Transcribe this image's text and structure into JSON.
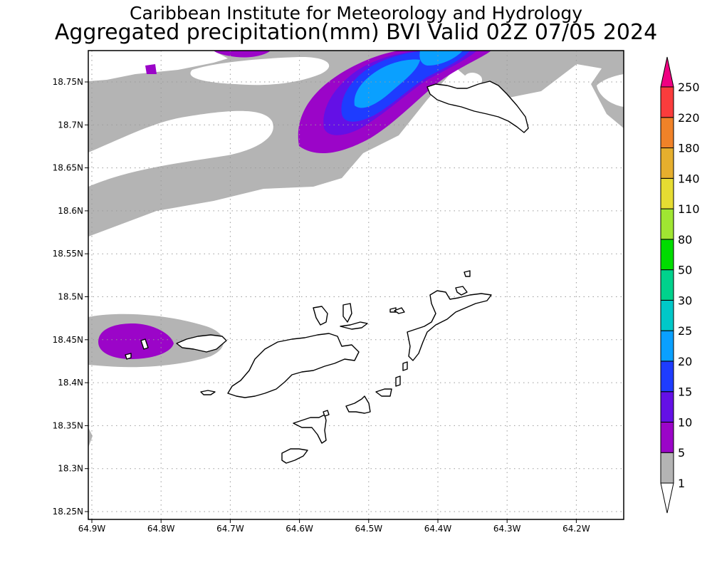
{
  "title": {
    "line1": "Caribbean Institute for Meteorology and Hydrology",
    "line2": "Aggregated precipitation(mm) BVI Valid 02Z 07/05 2024"
  },
  "axes": {
    "lat_labels": [
      "18.75N",
      "18.7N",
      "18.65N",
      "18.6N",
      "18.55N",
      "18.5N",
      "18.45N",
      "18.4N",
      "18.35N",
      "18.3N",
      "18.25N"
    ],
    "lat_values": [
      18.75,
      18.7,
      18.65,
      18.6,
      18.55,
      18.5,
      18.45,
      18.4,
      18.35,
      18.3,
      18.25
    ],
    "lon_labels": [
      "64.9W",
      "64.8W",
      "64.7W",
      "64.6W",
      "64.5W",
      "64.4W",
      "64.3W",
      "64.2W"
    ],
    "lon_values": [
      -64.9,
      -64.8,
      -64.7,
      -64.6,
      -64.5,
      -64.4,
      -64.3,
      -64.2
    ]
  },
  "legend": {
    "levels": [
      "1",
      "5",
      "10",
      "15",
      "20",
      "25",
      "30",
      "50",
      "80",
      "110",
      "140",
      "180",
      "220",
      "250"
    ],
    "colors": [
      "#ffffff",
      "#b4b4b4",
      "#9b05c8",
      "#6410e6",
      "#1e3cff",
      "#0aa0ff",
      "#00c8c8",
      "#00d28c",
      "#00dc00",
      "#a0e632",
      "#e6dc32",
      "#e6af2d",
      "#f08228",
      "#fa3c3c",
      "#f00082"
    ]
  },
  "colors": {
    "gray": "#b4b4b4",
    "purple": "#9b05c8",
    "violet": "#6410e6",
    "blue": "#1e3cff",
    "sky": "#0aa0ff",
    "grid": "#9a9a9a"
  }
}
